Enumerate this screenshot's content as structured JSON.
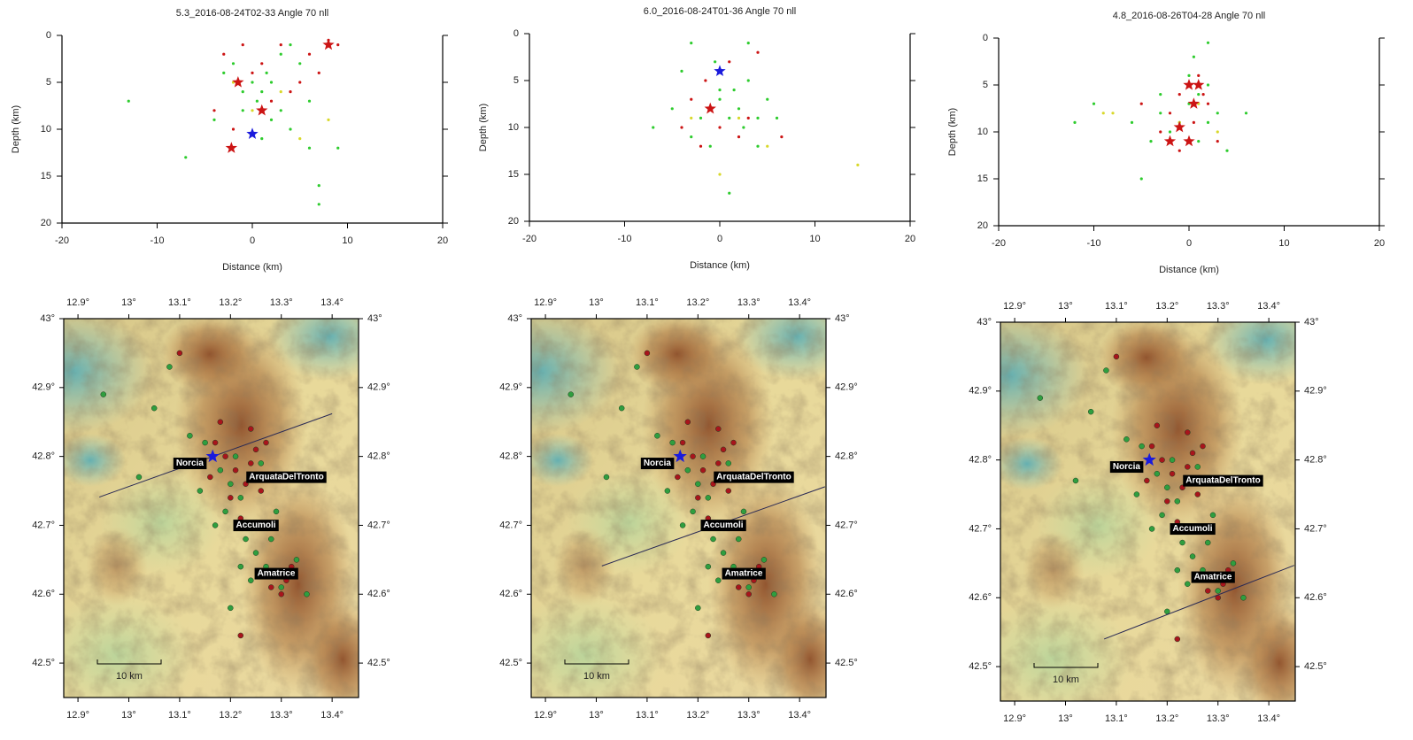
{
  "chart_data": [
    {
      "type": "scatter",
      "title": "5.3_2016-08-24T02-33 Angle 70 nll",
      "xlabel": "Distance (km)",
      "ylabel": "Depth (km)",
      "xlim": [
        -20,
        20
      ],
      "ylim": [
        20,
        0
      ],
      "xticks": [
        -20,
        -10,
        0,
        10,
        20
      ],
      "yticks": [
        0,
        5,
        10,
        15,
        20
      ],
      "series": [
        {
          "color": "#2ecc2e",
          "marker": "dot",
          "x": [
            -13,
            -7,
            -4,
            -2,
            -1,
            0,
            0.5,
            1,
            1.5,
            2,
            3,
            3,
            4,
            5,
            6,
            6,
            7,
            7,
            9,
            2,
            -3,
            1,
            4,
            -1
          ],
          "values": [
            7,
            13,
            9,
            3,
            6,
            5,
            7,
            6,
            4,
            5,
            2,
            8,
            10,
            3,
            7,
            12,
            16,
            18,
            12,
            9,
            4,
            11,
            1,
            8
          ]
        },
        {
          "color": "#cc1414",
          "marker": "dot",
          "x": [
            -4,
            -3,
            -2,
            -1,
            0,
            1,
            2,
            3,
            5,
            6,
            7,
            8,
            9,
            4
          ],
          "values": [
            8,
            2,
            10,
            1,
            4,
            3,
            7,
            1,
            5,
            2,
            4,
            0.5,
            1,
            6
          ]
        },
        {
          "color": "#d8d82a",
          "marker": "dot",
          "x": [
            -2,
            0,
            3,
            5,
            8
          ],
          "values": [
            5,
            8,
            6,
            11,
            9
          ]
        },
        {
          "color": "#cc1414",
          "marker": "star",
          "x": [
            -1.5,
            1,
            -2.2,
            8
          ],
          "values": [
            5,
            8,
            12,
            1
          ]
        },
        {
          "color": "#1a1adc",
          "marker": "star",
          "x": [
            0
          ],
          "values": [
            10.5
          ]
        }
      ]
    },
    {
      "type": "scatter",
      "title": "6.0_2016-08-24T01-36 Angle 70 nll",
      "xlabel": "Distance (km)",
      "ylabel": "Depth (km)",
      "xlim": [
        -20,
        20
      ],
      "ylim": [
        20,
        0
      ],
      "xticks": [
        -20,
        -10,
        0,
        10,
        20
      ],
      "yticks": [
        0,
        5,
        10,
        15,
        20
      ],
      "series": [
        {
          "color": "#2ecc2e",
          "marker": "dot",
          "x": [
            -7,
            -5,
            -4,
            -3,
            -2,
            -1,
            0,
            0,
            1,
            1.5,
            2,
            2.5,
            3,
            3,
            4,
            4,
            5,
            6,
            -3,
            1,
            -0.5
          ],
          "values": [
            10,
            8,
            4,
            11,
            9,
            12,
            7,
            6,
            9,
            6,
            8,
            10,
            1,
            5,
            9,
            12,
            7,
            9,
            1,
            17,
            3
          ]
        },
        {
          "color": "#cc1414",
          "marker": "dot",
          "x": [
            -4,
            -3,
            -2,
            -1,
            0,
            1,
            2,
            3,
            4,
            6.5,
            -1.5
          ],
          "values": [
            10,
            7,
            12,
            8,
            10,
            3,
            11,
            9,
            2,
            11,
            5
          ]
        },
        {
          "color": "#d8d82a",
          "marker": "dot",
          "x": [
            -3,
            0,
            2,
            5,
            14.5
          ],
          "values": [
            9,
            15,
            9,
            12,
            14
          ]
        },
        {
          "color": "#cc1414",
          "marker": "star",
          "x": [
            -1
          ],
          "values": [
            8
          ]
        },
        {
          "color": "#1a1adc",
          "marker": "star",
          "x": [
            0
          ],
          "values": [
            4
          ]
        }
      ]
    },
    {
      "type": "scatter",
      "title": "4.8_2016-08-26T04-28 Angle 70 nll",
      "xlabel": "Distance (km)",
      "ylabel": "Depth (km)",
      "xlim": [
        -20,
        20
      ],
      "ylim": [
        20,
        0
      ],
      "xticks": [
        -20,
        -10,
        0,
        10,
        20
      ],
      "yticks": [
        0,
        5,
        10,
        15,
        20
      ],
      "series": [
        {
          "color": "#2ecc2e",
          "marker": "dot",
          "x": [
            -12,
            -10,
            -5,
            -4,
            -3,
            -2,
            -1,
            0,
            0,
            0.5,
            1,
            1,
            2,
            2,
            3,
            4,
            6,
            -3,
            -6,
            2
          ],
          "values": [
            9,
            7,
            15,
            11,
            8,
            10,
            9,
            7,
            4,
            2,
            6,
            11,
            9,
            5,
            8,
            12,
            8,
            6,
            9,
            0.5
          ]
        },
        {
          "color": "#cc1414",
          "marker": "dot",
          "x": [
            -5,
            -3,
            -2,
            -1,
            0,
            0.5,
            1,
            1.5,
            2,
            3,
            -1
          ],
          "values": [
            7,
            10,
            8,
            6,
            5,
            9,
            4,
            6,
            7,
            11,
            12
          ]
        },
        {
          "color": "#d8d82a",
          "marker": "dot",
          "x": [
            -9,
            -8,
            -1,
            1,
            3
          ],
          "values": [
            8,
            8,
            9,
            7,
            10
          ]
        },
        {
          "color": "#cc1414",
          "marker": "star",
          "x": [
            0,
            1,
            0.5,
            -1,
            -2,
            0
          ],
          "values": [
            5,
            5,
            7,
            9.5,
            11,
            11
          ]
        }
      ]
    },
    {
      "type": "map",
      "xlim": [
        12.872,
        13.452
      ],
      "ylim": [
        42.45,
        43.0
      ],
      "xticks": [
        {
          "value": 12.9,
          "label": "12.9°"
        },
        {
          "value": 13,
          "label": "13°"
        },
        {
          "value": 13.1,
          "label": "13.1°"
        },
        {
          "value": 13.2,
          "label": "13.2°"
        },
        {
          "value": 13.3,
          "label": "13.3°"
        },
        {
          "value": 13.4,
          "label": "13.4°"
        }
      ],
      "yticks": [
        {
          "value": 42.5,
          "label": "42.5°"
        },
        {
          "value": 42.6,
          "label": "42.6°"
        },
        {
          "value": 42.7,
          "label": "42.7°"
        },
        {
          "value": 42.8,
          "label": "42.8°"
        },
        {
          "value": 42.9,
          "label": "42.9°"
        },
        {
          "value": 43,
          "label": "43°"
        }
      ],
      "towns": [
        {
          "label": "Norcia",
          "x": 13.12,
          "y": 42.79
        },
        {
          "label": "ArquataDelTronto",
          "x": 13.31,
          "y": 42.77
        },
        {
          "label": "Accumoli",
          "x": 13.25,
          "y": 42.7
        },
        {
          "label": "Amatrice",
          "x": 13.29,
          "y": 42.63
        }
      ],
      "section": {
        "x": [
          12.942,
          13.4
        ],
        "values": [
          42.741,
          42.862
        ]
      },
      "series": [
        {
          "color": "#2f9e3f",
          "marker": "dot",
          "x": [
            13.15,
            13.18,
            13.2,
            13.22,
            13.19,
            13.23,
            13.25,
            13.27,
            13.24,
            13.3,
            13.14,
            13.12,
            13.21,
            13.26,
            13.17,
            13.28,
            13.33,
            13.22,
            13.05,
            12.95,
            13.08,
            13.2,
            13.35,
            13.02,
            13.29
          ],
          "values": [
            42.82,
            42.78,
            42.76,
            42.74,
            42.72,
            42.68,
            42.66,
            42.64,
            42.62,
            42.61,
            42.75,
            42.83,
            42.8,
            42.79,
            42.7,
            42.68,
            42.65,
            42.64,
            42.87,
            42.89,
            42.93,
            42.58,
            42.6,
            42.77,
            42.72
          ]
        },
        {
          "color": "#a8141c",
          "marker": "dot",
          "x": [
            13.17,
            13.19,
            13.21,
            13.24,
            13.25,
            13.23,
            13.2,
            13.22,
            13.26,
            13.27,
            13.29,
            13.31,
            13.3,
            13.32,
            13.28,
            13.16,
            13.24,
            13.18,
            13.22,
            13.1
          ],
          "values": [
            42.82,
            42.8,
            42.78,
            42.84,
            42.81,
            42.76,
            42.74,
            42.71,
            42.75,
            42.82,
            42.63,
            42.62,
            42.6,
            42.64,
            42.61,
            42.77,
            42.79,
            42.85,
            42.54,
            42.95
          ]
        },
        {
          "color": "#1a1adc",
          "marker": "star",
          "x": [
            13.165
          ],
          "values": [
            42.8
          ]
        }
      ],
      "scale_label": "10 km"
    },
    {
      "type": "map",
      "xlim": [
        12.872,
        13.452
      ],
      "ylim": [
        42.45,
        43.0
      ],
      "xticks": [
        {
          "value": 12.9,
          "label": "12.9°"
        },
        {
          "value": 13,
          "label": "13°"
        },
        {
          "value": 13.1,
          "label": "13.1°"
        },
        {
          "value": 13.2,
          "label": "13.2°"
        },
        {
          "value": 13.3,
          "label": "13.3°"
        },
        {
          "value": 13.4,
          "label": "13.4°"
        }
      ],
      "yticks": [
        {
          "value": 42.5,
          "label": "42.5°"
        },
        {
          "value": 42.6,
          "label": "42.6°"
        },
        {
          "value": 42.7,
          "label": "42.7°"
        },
        {
          "value": 42.8,
          "label": "42.8°"
        },
        {
          "value": 42.9,
          "label": "42.9°"
        },
        {
          "value": 43,
          "label": "43°"
        }
      ],
      "towns": [
        {
          "label": "Norcia",
          "x": 13.12,
          "y": 42.79
        },
        {
          "label": "ArquataDelTronto",
          "x": 13.31,
          "y": 42.77
        },
        {
          "label": "Accumoli",
          "x": 13.25,
          "y": 42.7
        },
        {
          "label": "Amatrice",
          "x": 13.29,
          "y": 42.63
        }
      ],
      "section": {
        "x": [
          13.011,
          13.45
        ],
        "values": [
          42.641,
          42.756
        ]
      },
      "series": [
        {
          "color": "#2f9e3f",
          "marker": "dot",
          "x": [
            13.15,
            13.18,
            13.2,
            13.22,
            13.19,
            13.23,
            13.25,
            13.27,
            13.24,
            13.3,
            13.14,
            13.12,
            13.21,
            13.26,
            13.17,
            13.28,
            13.33,
            13.22,
            13.05,
            12.95,
            13.08,
            13.2,
            13.35,
            13.02,
            13.29
          ],
          "values": [
            42.82,
            42.78,
            42.76,
            42.74,
            42.72,
            42.68,
            42.66,
            42.64,
            42.62,
            42.61,
            42.75,
            42.83,
            42.8,
            42.79,
            42.7,
            42.68,
            42.65,
            42.64,
            42.87,
            42.89,
            42.93,
            42.58,
            42.6,
            42.77,
            42.72
          ]
        },
        {
          "color": "#a8141c",
          "marker": "dot",
          "x": [
            13.17,
            13.19,
            13.21,
            13.24,
            13.25,
            13.23,
            13.2,
            13.22,
            13.26,
            13.27,
            13.29,
            13.31,
            13.3,
            13.32,
            13.28,
            13.16,
            13.24,
            13.18,
            13.22,
            13.1
          ],
          "values": [
            42.82,
            42.8,
            42.78,
            42.84,
            42.81,
            42.76,
            42.74,
            42.71,
            42.75,
            42.82,
            42.63,
            42.62,
            42.6,
            42.64,
            42.61,
            42.77,
            42.79,
            42.85,
            42.54,
            42.95
          ]
        },
        {
          "color": "#1a1adc",
          "marker": "star",
          "x": [
            13.165
          ],
          "values": [
            42.8
          ]
        }
      ],
      "scale_label": "10 km"
    },
    {
      "type": "map",
      "xlim": [
        12.872,
        13.452
      ],
      "ylim": [
        42.45,
        43.0
      ],
      "xticks": [
        {
          "value": 12.9,
          "label": "12.9°"
        },
        {
          "value": 13,
          "label": "13°"
        },
        {
          "value": 13.1,
          "label": "13.1°"
        },
        {
          "value": 13.2,
          "label": "13.2°"
        },
        {
          "value": 13.3,
          "label": "13.3°"
        },
        {
          "value": 13.4,
          "label": "13.4°"
        }
      ],
      "yticks": [
        {
          "value": 42.5,
          "label": "42.5°"
        },
        {
          "value": 42.6,
          "label": "42.6°"
        },
        {
          "value": 42.7,
          "label": "42.7°"
        },
        {
          "value": 42.8,
          "label": "42.8°"
        },
        {
          "value": 42.9,
          "label": "42.9°"
        },
        {
          "value": 43,
          "label": "43°"
        }
      ],
      "towns": [
        {
          "label": "Norcia",
          "x": 13.12,
          "y": 42.79
        },
        {
          "label": "ArquataDelTronto",
          "x": 13.31,
          "y": 42.77
        },
        {
          "label": "Accumoli",
          "x": 13.25,
          "y": 42.7
        },
        {
          "label": "Amatrice",
          "x": 13.29,
          "y": 42.63
        }
      ],
      "section": {
        "x": [
          13.076,
          13.45
        ],
        "values": [
          42.54,
          42.647
        ]
      },
      "series": [
        {
          "color": "#2f9e3f",
          "marker": "dot",
          "x": [
            13.15,
            13.18,
            13.2,
            13.22,
            13.19,
            13.23,
            13.25,
            13.27,
            13.24,
            13.3,
            13.14,
            13.12,
            13.21,
            13.26,
            13.17,
            13.28,
            13.33,
            13.22,
            13.05,
            12.95,
            13.08,
            13.2,
            13.35,
            13.02,
            13.29
          ],
          "values": [
            42.82,
            42.78,
            42.76,
            42.74,
            42.72,
            42.68,
            42.66,
            42.64,
            42.62,
            42.61,
            42.75,
            42.83,
            42.8,
            42.79,
            42.7,
            42.68,
            42.65,
            42.64,
            42.87,
            42.89,
            42.93,
            42.58,
            42.6,
            42.77,
            42.72
          ]
        },
        {
          "color": "#a8141c",
          "marker": "dot",
          "x": [
            13.17,
            13.19,
            13.21,
            13.24,
            13.25,
            13.23,
            13.2,
            13.22,
            13.26,
            13.27,
            13.29,
            13.31,
            13.3,
            13.32,
            13.28,
            13.16,
            13.24,
            13.18,
            13.22,
            13.1
          ],
          "values": [
            42.82,
            42.8,
            42.78,
            42.84,
            42.81,
            42.76,
            42.74,
            42.71,
            42.75,
            42.82,
            42.63,
            42.62,
            42.6,
            42.64,
            42.61,
            42.77,
            42.79,
            42.85,
            42.54,
            42.95
          ]
        },
        {
          "color": "#1a1adc",
          "marker": "star",
          "x": [
            13.165
          ],
          "values": [
            42.8
          ]
        }
      ],
      "scale_label": "10 km"
    }
  ]
}
